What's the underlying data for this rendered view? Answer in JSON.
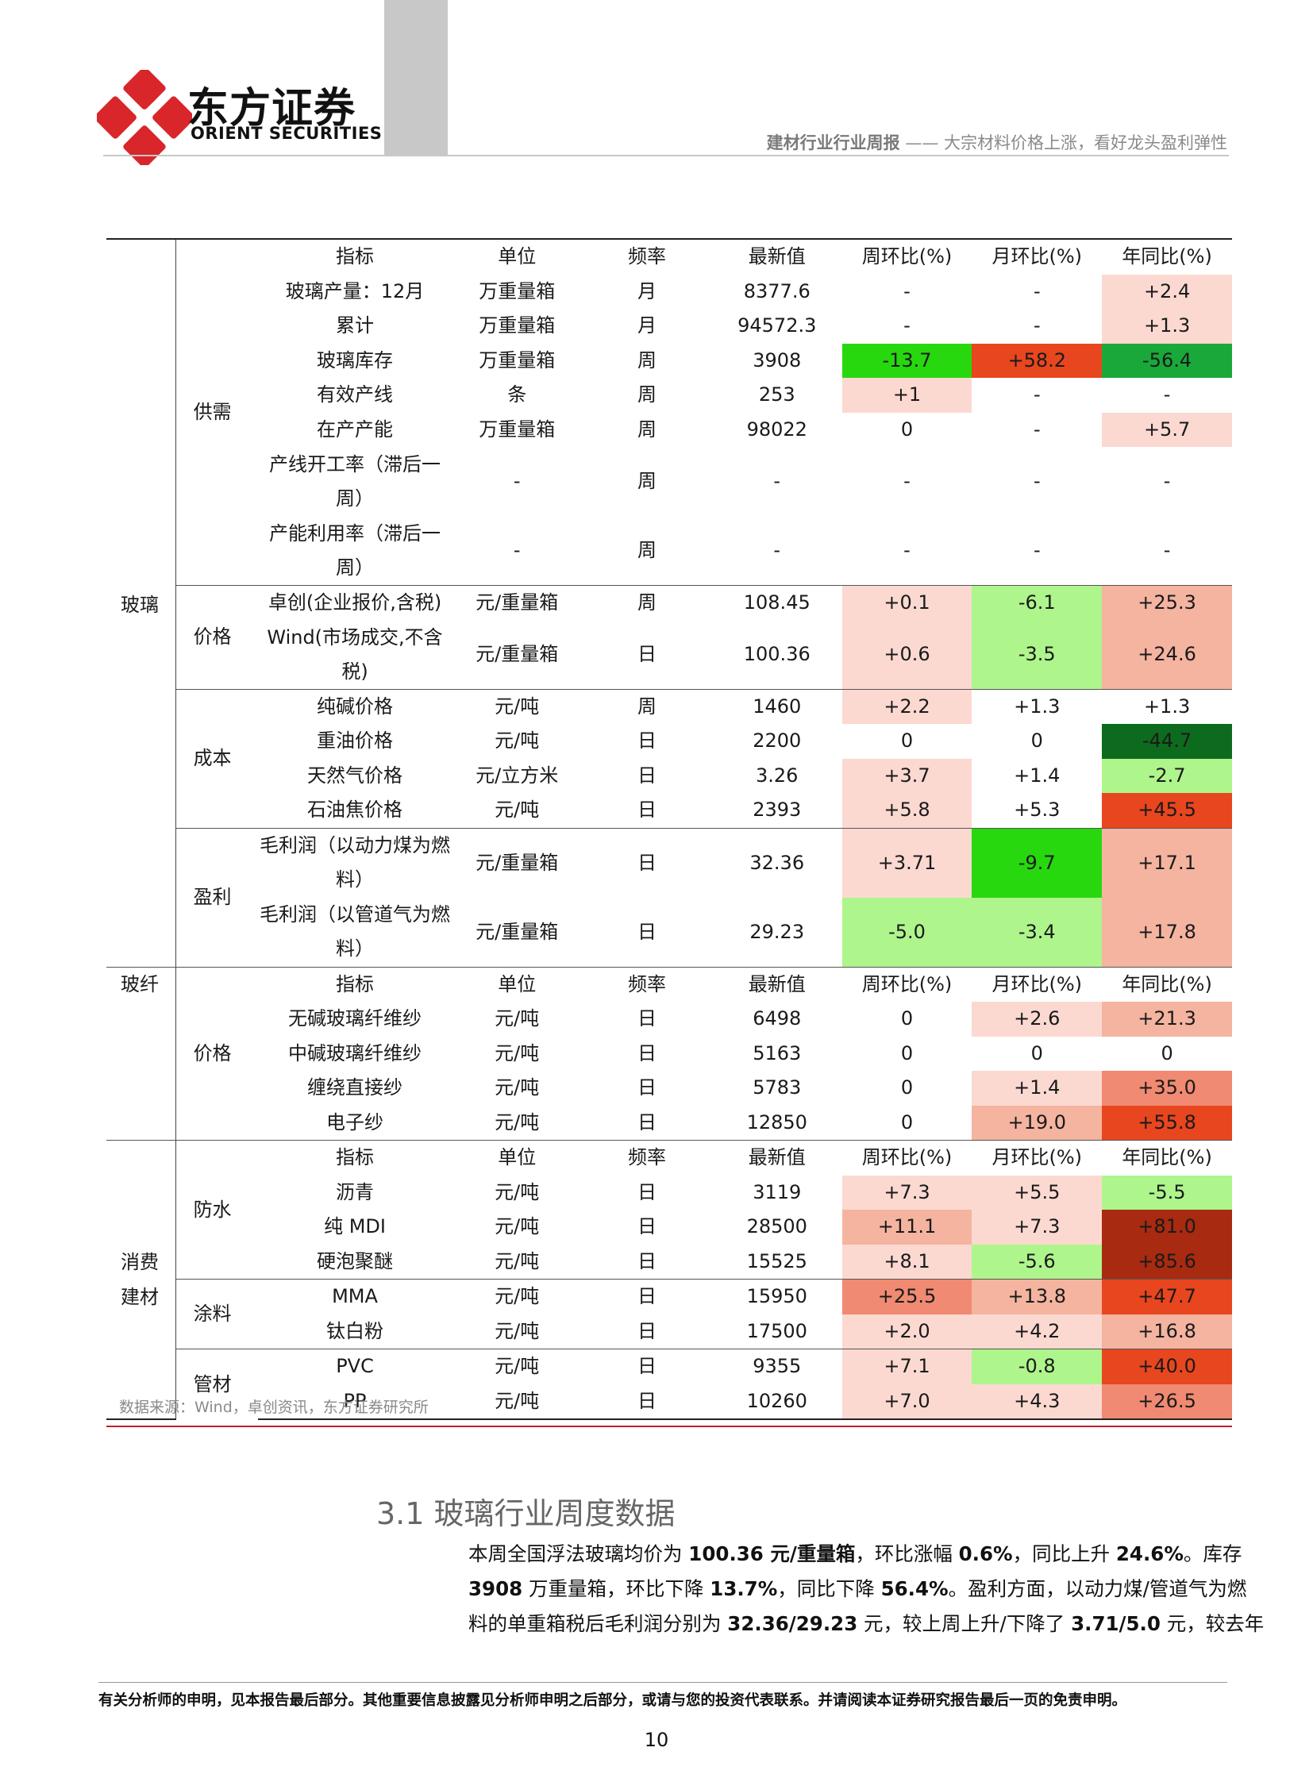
{
  "header": {
    "brand_cn": "东方证券",
    "brand_en": "ORIENT SECURITIES",
    "report_title_bold": "建材行业行业周报",
    "report_title_rest": " —— 大宗材料价格上涨，看好龙头盈利弹性"
  },
  "colors": {
    "red_darkest": "#a82a10",
    "red_strong": "#e8461e",
    "red_mid": "#f08a72",
    "red_light": "#f4b4a0",
    "red_pale": "#fbd9d1",
    "green_dark": "#0d6b1e",
    "green_strong": "#27d80f",
    "green_mid": "#1aa83a",
    "green_light": "#aef58c"
  },
  "table": {
    "headers": [
      "指标",
      "单位",
      "频率",
      "最新值",
      "周环比(%)",
      "月环比(%)",
      "年同比(%)"
    ],
    "categories": {
      "glass": "玻璃",
      "fiber": "玻纤",
      "consumer": "消费\n建材"
    },
    "subcategories": {
      "supply": "供需",
      "glass_price": "价格",
      "cost": "成本",
      "profit": "盈利",
      "fiber_price": "价格",
      "waterproof": "防水",
      "coating": "涂料",
      "pipe": "管材"
    },
    "glass_rows": [
      [
        "玻璃产量：12月",
        "万重量箱",
        "月",
        "8377.6",
        "-",
        "-",
        "+2.4"
      ],
      [
        "累计",
        "万重量箱",
        "月",
        "94572.3",
        "-",
        "-",
        "+1.3"
      ],
      [
        "玻璃库存",
        "万重量箱",
        "周",
        "3908",
        "-13.7",
        "+58.2",
        "-56.4"
      ],
      [
        "有效产线",
        "条",
        "周",
        "253",
        "+1",
        "-",
        "-"
      ],
      [
        "在产产能",
        "万重量箱",
        "周",
        "98022",
        "0",
        "-",
        "+5.7"
      ],
      [
        "产线开工率（滞后一周）",
        "-",
        "周",
        "-",
        "-",
        "-",
        "-"
      ],
      [
        "产能利用率（滞后一周）",
        "-",
        "周",
        "-",
        "-",
        "-",
        "-"
      ],
      [
        "卓创(企业报价,含税)",
        "元/重量箱",
        "周",
        "108.45",
        "+0.1",
        "-6.1",
        "+25.3"
      ],
      [
        "Wind(市场成交,不含税)",
        "元/重量箱",
        "日",
        "100.36",
        "+0.6",
        "-3.5",
        "+24.6"
      ],
      [
        "纯碱价格",
        "元/吨",
        "周",
        "1460",
        "+2.2",
        "+1.3",
        "+1.3"
      ],
      [
        "重油价格",
        "元/吨",
        "日",
        "2200",
        "0",
        "0",
        "-44.7"
      ],
      [
        "天然气价格",
        "元/立方米",
        "日",
        "3.26",
        "+3.7",
        "+1.4",
        "-2.7"
      ],
      [
        "石油焦价格",
        "元/吨",
        "日",
        "2393",
        "+5.8",
        "+5.3",
        "+45.5"
      ],
      [
        "毛利润（以动力煤为燃料）",
        "元/重量箱",
        "日",
        "32.36",
        "+3.71",
        "-9.7",
        "+17.1"
      ],
      [
        "毛利润（以管道气为燃料）",
        "元/重量箱",
        "日",
        "29.23",
        "-5.0",
        "-3.4",
        "+17.8"
      ]
    ],
    "fiber_rows": [
      [
        "无碱玻璃纤维纱",
        "元/吨",
        "日",
        "6498",
        "0",
        "+2.6",
        "+21.3"
      ],
      [
        "中碱玻璃纤维纱",
        "元/吨",
        "日",
        "5163",
        "0",
        "0",
        "0"
      ],
      [
        "缠绕直接纱",
        "元/吨",
        "日",
        "5783",
        "0",
        "+1.4",
        "+35.0"
      ],
      [
        "电子纱",
        "元/吨",
        "日",
        "12850",
        "0",
        "+19.0",
        "+55.8"
      ]
    ],
    "consumer_rows": [
      [
        "沥青",
        "元/吨",
        "日",
        "3119",
        "+7.3",
        "+5.5",
        "-5.5"
      ],
      [
        "纯 MDI",
        "元/吨",
        "日",
        "28500",
        "+11.1",
        "+7.3",
        "+81.0"
      ],
      [
        "硬泡聚醚",
        "元/吨",
        "日",
        "15525",
        "+8.1",
        "-5.6",
        "+85.6"
      ],
      [
        "MMA",
        "元/吨",
        "日",
        "15950",
        "+25.5",
        "+13.8",
        "+47.7"
      ],
      [
        "钛白粉",
        "元/吨",
        "日",
        "17500",
        "+2.0",
        "+4.2",
        "+16.8"
      ],
      [
        "PVC",
        "元/吨",
        "日",
        "9355",
        "+7.1",
        "-0.8",
        "+40.0"
      ],
      [
        "PP",
        "元/吨",
        "日",
        "10260",
        "+7.0",
        "+4.3",
        "+26.5"
      ]
    ]
  },
  "source_note": "数据来源：Wind，卓创资讯，东方证券研究所",
  "section_title": "3.1 玻璃行业周度数据",
  "body_lines": [
    [
      {
        "t": "本周全国浮法玻璃均价为 "
      },
      {
        "t": "100.36 元/重量箱",
        "b": true
      },
      {
        "t": "，环比涨幅 "
      },
      {
        "t": "0.6%",
        "b": true
      },
      {
        "t": "，同比上升 "
      },
      {
        "t": "24.6%",
        "b": true
      },
      {
        "t": "。库存"
      }
    ],
    [
      {
        "t": "3908",
        "b": true
      },
      {
        "t": " 万重量箱，环比下降 "
      },
      {
        "t": "13.7%",
        "b": true
      },
      {
        "t": "，同比下降 "
      },
      {
        "t": "56.4%",
        "b": true
      },
      {
        "t": "。盈利方面，以动力煤/管道气为燃"
      }
    ],
    [
      {
        "t": "料的单重箱税后毛利润分别为 "
      },
      {
        "t": "32.36/29.23",
        "b": true
      },
      {
        "t": " 元，较上周上升/下降了 "
      },
      {
        "t": "3.71/5.0",
        "b": true
      },
      {
        "t": " 元，较去年"
      }
    ]
  ],
  "footer": {
    "disclaimer": "有关分析师的申明，见本报告最后部分。其他重要信息披露见分析师申明之后部分，或请与您的投资代表联系。并请阅读本证券研究报告最后一页的免责申明。",
    "page_number": "10"
  }
}
